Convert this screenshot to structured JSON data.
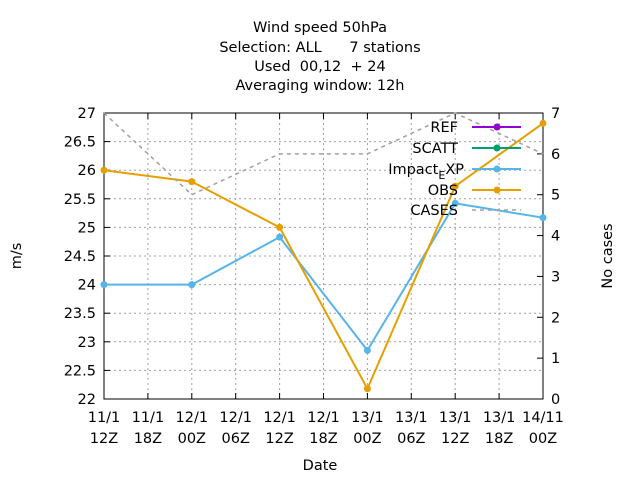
{
  "chart_data": {
    "type": "line",
    "title_lines": [
      "Wind speed 50hPa",
      "Selection: ALL      7 stations",
      "Used  00,12  + 24",
      "Averaging window: 12h"
    ],
    "xlabel": "Date",
    "ylabel": "m/s",
    "y2label": "No cases",
    "x_tick_labels": [
      [
        "11/1",
        "12Z"
      ],
      [
        "11/1",
        "18Z"
      ],
      [
        "12/1",
        "00Z"
      ],
      [
        "12/1",
        "06Z"
      ],
      [
        "12/1",
        "12Z"
      ],
      [
        "12/1",
        "18Z"
      ],
      [
        "13/1",
        "00Z"
      ],
      [
        "13/1",
        "06Z"
      ],
      [
        "13/1",
        "12Z"
      ],
      [
        "13/1",
        "18Z"
      ],
      [
        "14/11",
        "00Z"
      ]
    ],
    "ylim": [
      22,
      27
    ],
    "y_ticks": [
      "22",
      "22.5",
      "23",
      "23.5",
      "24",
      "24.5",
      "25",
      "25.5",
      "26",
      "26.5",
      "27"
    ],
    "y2lim": [
      0,
      7
    ],
    "y2_ticks": [
      "0",
      "1",
      "2",
      "3",
      "4",
      "5",
      "6",
      "7"
    ],
    "grid": true,
    "legend_position": "top-right",
    "series": [
      {
        "name": "REF",
        "color": "#9400d3",
        "axis": "y",
        "style": "line-points",
        "x": [],
        "y": []
      },
      {
        "name": "SCATT",
        "color": "#009e73",
        "axis": "y",
        "style": "line-points",
        "x": [],
        "y": []
      },
      {
        "name": "Impact_EXP",
        "color": "#56b4e9",
        "axis": "y",
        "style": "line-points",
        "x": [
          0,
          2,
          4,
          6,
          8,
          10
        ],
        "y": [
          24.0,
          24.0,
          24.83,
          22.85,
          25.42,
          25.17
        ]
      },
      {
        "name": "OBS",
        "color": "#e69f00",
        "axis": "y",
        "style": "line-points",
        "x": [
          0,
          2,
          4,
          6,
          8,
          10
        ],
        "y": [
          26.0,
          25.8,
          25.0,
          22.18,
          25.72,
          26.82
        ]
      },
      {
        "name": "CASES",
        "color": "#a0a0a0",
        "axis": "y2",
        "style": "dashed",
        "x": [
          0,
          2,
          4,
          6,
          8,
          10
        ],
        "y": [
          7,
          5,
          6,
          6,
          7,
          6
        ]
      }
    ]
  }
}
